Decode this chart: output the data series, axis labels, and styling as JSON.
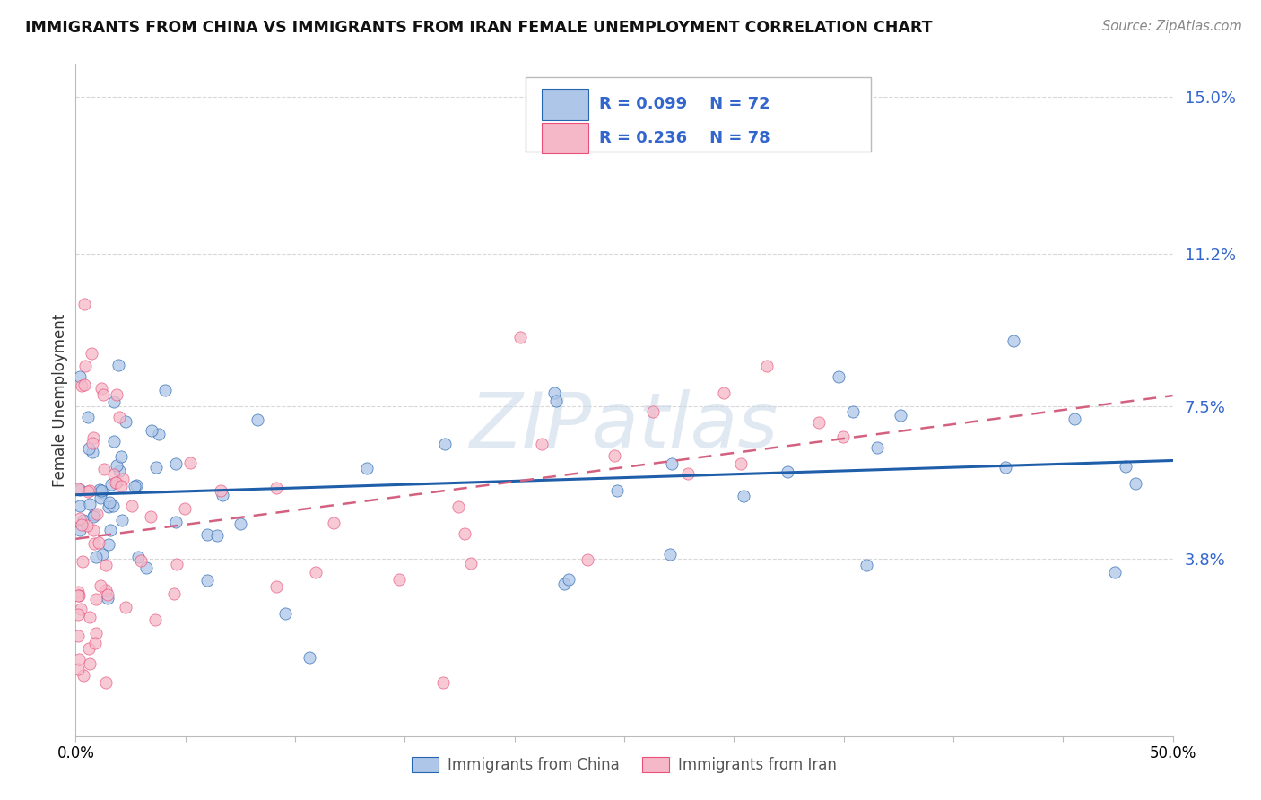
{
  "title": "IMMIGRANTS FROM CHINA VS IMMIGRANTS FROM IRAN FEMALE UNEMPLOYMENT CORRELATION CHART",
  "source": "Source: ZipAtlas.com",
  "ylabel": "Female Unemployment",
  "xmin": 0.0,
  "xmax": 0.5,
  "ymin": -0.005,
  "ymax": 0.158,
  "watermark_text": "ZIPatlas",
  "legend_china_r": "R = 0.099",
  "legend_china_n": "N = 72",
  "legend_iran_r": "R = 0.236",
  "legend_iran_n": "N = 78",
  "color_china_fill": "#aec6e8",
  "color_china_edge": "#2665b0",
  "color_iran_fill": "#f5b8c8",
  "color_iran_edge": "#e8507a",
  "color_china_line": "#1f5faa",
  "color_iran_line": "#d46080",
  "background_color": "#ffffff",
  "grid_color": "#d8d8d8",
  "ytick_vals": [
    0.038,
    0.075,
    0.112,
    0.15
  ],
  "ytick_labels": [
    "3.8%",
    "7.5%",
    "11.2%",
    "15.0%"
  ],
  "xtick_vals": [
    0.0,
    0.05,
    0.1,
    0.15,
    0.2,
    0.25,
    0.3,
    0.35,
    0.4,
    0.45,
    0.5
  ],
  "china_intercept": 0.0535,
  "china_slope": 0.012,
  "iran_intercept": 0.043,
  "iran_slope": 0.072
}
